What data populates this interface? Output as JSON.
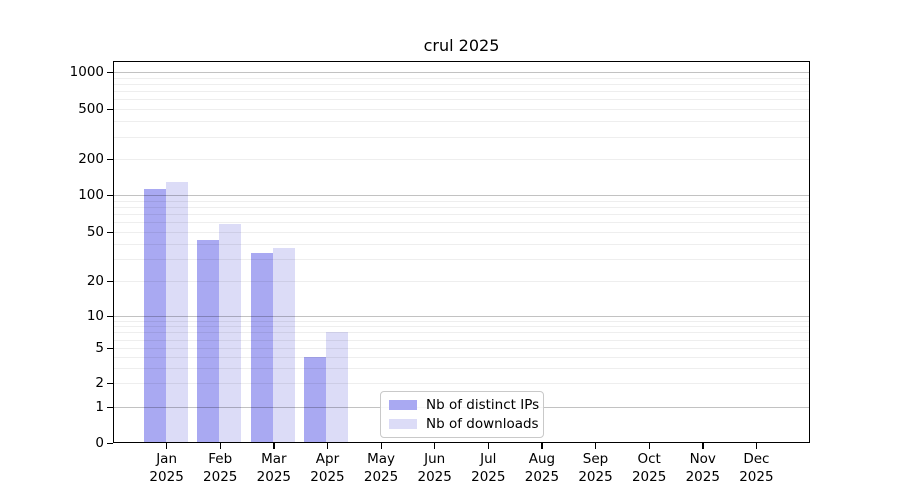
{
  "figure": {
    "background": "#ffffff"
  },
  "chart_data": {
    "type": "bar",
    "title": "crul 2025",
    "months": [
      "Jan",
      "Feb",
      "Mar",
      "Apr",
      "May",
      "Jun",
      "Jul",
      "Aug",
      "Sep",
      "Oct",
      "Nov",
      "Dec"
    ],
    "year": "2025",
    "series": [
      {
        "name": "Nb of distinct IPs",
        "color": "#a9a9f2",
        "values": [
          112,
          43,
          34,
          4,
          0,
          0,
          0,
          0,
          0,
          0,
          0,
          0
        ]
      },
      {
        "name": "Nb of downloads",
        "color": "#dcdcf7",
        "values": [
          128,
          58,
          37,
          7,
          0,
          0,
          0,
          0,
          0,
          0,
          0,
          0
        ]
      }
    ],
    "yscale": "symlog",
    "yticks": [
      0,
      1,
      2,
      5,
      10,
      20,
      50,
      100,
      200,
      500,
      1000
    ],
    "ytick_labels": [
      "0",
      "1",
      "2",
      "5",
      "10",
      "20",
      "50",
      "100",
      "200",
      "500",
      "1000"
    ],
    "ylim": [
      0,
      1250
    ],
    "grid": true,
    "legend_position": "lower-center"
  }
}
